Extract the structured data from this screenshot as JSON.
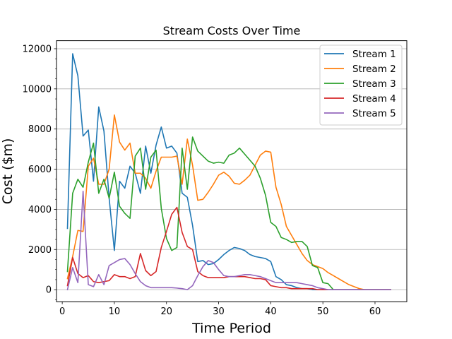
{
  "chart_data": {
    "type": "line",
    "title": "Stream Costs Over Time",
    "xlabel": "Time Period",
    "ylabel": "Cost ($m)",
    "xlim": [
      -1.1,
      66.1
    ],
    "ylim": [
      -600,
      12400
    ],
    "xticks": [
      0,
      10,
      20,
      30,
      40,
      50,
      60
    ],
    "yticks": [
      0,
      2000,
      4000,
      6000,
      8000,
      10000,
      12000
    ],
    "grid": "horizontal",
    "legend_position": "top-right",
    "series": [
      {
        "name": "Stream 1",
        "color": "#1f77b4",
        "x": [
          1,
          2,
          3,
          4,
          5,
          6,
          7,
          8,
          9,
          10,
          11,
          12,
          13,
          14,
          15,
          16,
          17,
          18,
          19,
          20,
          21,
          22,
          23,
          24,
          25,
          26,
          27,
          28,
          29,
          30,
          31,
          32,
          33,
          34,
          35,
          36,
          37,
          38,
          39,
          40,
          41,
          42,
          43,
          44,
          45,
          46,
          47,
          48,
          49,
          50,
          51,
          52,
          53,
          54,
          55,
          56,
          57,
          58,
          59,
          60,
          61,
          62,
          63
        ],
        "values": [
          3050,
          11750,
          10650,
          7650,
          7950,
          5400,
          9100,
          7900,
          4550,
          1950,
          5400,
          5050,
          6150,
          5800,
          4800,
          7150,
          5800,
          7200,
          8100,
          7050,
          7150,
          6800,
          4800,
          4600,
          3200,
          1400,
          1450,
          1250,
          1300,
          1500,
          1750,
          1950,
          2100,
          2050,
          1950,
          1750,
          1650,
          1600,
          1550,
          1400,
          650,
          500,
          250,
          200,
          100,
          50,
          50,
          0,
          0,
          0,
          0,
          0,
          0,
          0,
          0,
          0,
          0,
          0,
          0,
          0,
          0,
          0,
          0
        ]
      },
      {
        "name": "Stream 2",
        "color": "#ff7f0e",
        "x": [
          1,
          2,
          3,
          4,
          5,
          6,
          7,
          8,
          9,
          10,
          11,
          12,
          13,
          14,
          15,
          16,
          17,
          18,
          19,
          20,
          21,
          22,
          23,
          24,
          25,
          26,
          27,
          28,
          29,
          30,
          31,
          32,
          33,
          34,
          35,
          36,
          37,
          38,
          39,
          40,
          41,
          42,
          43,
          44,
          45,
          46,
          47,
          48,
          49,
          50,
          51,
          52,
          53,
          54,
          55,
          56,
          57,
          58,
          59,
          60,
          61,
          62,
          63
        ],
        "values": [
          550,
          1650,
          2950,
          2900,
          6150,
          6550,
          5250,
          5250,
          6000,
          8700,
          7350,
          6950,
          7300,
          5800,
          5800,
          5550,
          5050,
          5900,
          6600,
          6600,
          6600,
          6650,
          5250,
          7500,
          6200,
          4450,
          4500,
          4850,
          5250,
          5700,
          5850,
          5650,
          5300,
          5250,
          5450,
          5700,
          6200,
          6700,
          6900,
          6850,
          5100,
          4250,
          3150,
          2700,
          2250,
          1800,
          1450,
          1250,
          1150,
          1050,
          850,
          700,
          550,
          400,
          250,
          150,
          50,
          0,
          0,
          0,
          0,
          0,
          0
        ]
      },
      {
        "name": "Stream 3",
        "color": "#2ca02c",
        "x": [
          1,
          2,
          3,
          4,
          5,
          6,
          7,
          8,
          9,
          10,
          11,
          12,
          13,
          14,
          15,
          16,
          17,
          18,
          19,
          20,
          21,
          22,
          23,
          24,
          25,
          26,
          27,
          28,
          29,
          30,
          31,
          32,
          33,
          34,
          35,
          36,
          37,
          38,
          39,
          40,
          41,
          42,
          43,
          44,
          45,
          46,
          47,
          48,
          49,
          50,
          51,
          52,
          53,
          54,
          55,
          56,
          57,
          58,
          59,
          60,
          61,
          62,
          63
        ],
        "values": [
          900,
          4800,
          5500,
          5100,
          6350,
          7300,
          4800,
          5500,
          4550,
          5850,
          4150,
          3800,
          3550,
          6650,
          7050,
          5000,
          6600,
          6950,
          4050,
          2550,
          1950,
          2100,
          7050,
          5000,
          7600,
          6900,
          6650,
          6400,
          6300,
          6350,
          6300,
          6700,
          6800,
          7050,
          6750,
          6450,
          6150,
          5550,
          4700,
          3350,
          3150,
          2600,
          2500,
          2350,
          2400,
          2400,
          2150,
          1200,
          1100,
          350,
          300,
          0,
          0,
          0,
          0,
          0,
          0,
          0,
          0,
          0,
          0,
          0,
          0
        ]
      },
      {
        "name": "Stream 4",
        "color": "#d62728",
        "x": [
          1,
          2,
          3,
          4,
          5,
          6,
          7,
          8,
          9,
          10,
          11,
          12,
          13,
          14,
          15,
          16,
          17,
          18,
          19,
          20,
          21,
          22,
          23,
          24,
          25,
          26,
          27,
          28,
          29,
          30,
          31,
          32,
          33,
          34,
          35,
          36,
          37,
          38,
          39,
          40,
          41,
          42,
          43,
          44,
          45,
          46,
          47,
          48,
          49,
          50,
          51,
          52,
          53,
          54,
          55,
          56,
          57,
          58,
          59,
          60,
          61,
          62,
          63
        ],
        "values": [
          200,
          1600,
          800,
          600,
          700,
          400,
          350,
          400,
          450,
          750,
          650,
          650,
          550,
          650,
          1800,
          950,
          700,
          900,
          2100,
          2900,
          3750,
          4100,
          2850,
          2150,
          2000,
          900,
          700,
          600,
          600,
          600,
          600,
          650,
          650,
          650,
          650,
          600,
          550,
          550,
          500,
          200,
          150,
          100,
          100,
          50,
          50,
          50,
          50,
          50,
          0,
          0,
          0,
          0,
          0,
          0,
          0,
          0,
          0,
          0,
          0,
          0,
          0,
          0,
          0
        ]
      },
      {
        "name": "Stream 5",
        "color": "#9467bd",
        "x": [
          1,
          2,
          3,
          4,
          5,
          6,
          7,
          8,
          9,
          10,
          11,
          12,
          13,
          14,
          15,
          16,
          17,
          18,
          19,
          20,
          21,
          22,
          23,
          24,
          25,
          26,
          27,
          28,
          29,
          30,
          31,
          32,
          33,
          34,
          35,
          36,
          37,
          38,
          39,
          40,
          41,
          42,
          43,
          44,
          45,
          46,
          47,
          48,
          49,
          50,
          51,
          52,
          53,
          54,
          55,
          56,
          57,
          58,
          59,
          60,
          61,
          62,
          63
        ],
        "values": [
          0,
          1100,
          350,
          4900,
          250,
          150,
          750,
          250,
          1200,
          1350,
          1500,
          1550,
          1250,
          800,
          400,
          200,
          100,
          100,
          100,
          100,
          100,
          80,
          50,
          0,
          200,
          700,
          1150,
          1450,
          1350,
          1000,
          700,
          650,
          650,
          700,
          750,
          750,
          700,
          650,
          550,
          450,
          350,
          350,
          350,
          350,
          350,
          300,
          250,
          200,
          100,
          50,
          0,
          0,
          0,
          0,
          0,
          0,
          0,
          0,
          0,
          0,
          0,
          0,
          0
        ]
      }
    ]
  }
}
